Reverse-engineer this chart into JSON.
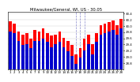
{
  "title": "Milwaukee/General, WI, US - 30.05",
  "highs": [
    30.15,
    30.08,
    29.82,
    29.72,
    29.78,
    29.58,
    29.88,
    29.82,
    29.92,
    29.78,
    29.68,
    29.72,
    29.82,
    29.62,
    29.52,
    29.38,
    29.08,
    29.28,
    29.58,
    29.72,
    29.42,
    29.78,
    30.02,
    30.08,
    30.12,
    30.18,
    30.02,
    30.22
  ],
  "lows": [
    29.82,
    29.78,
    29.52,
    29.38,
    29.42,
    29.28,
    29.52,
    29.52,
    29.58,
    29.48,
    29.32,
    29.42,
    29.48,
    29.32,
    29.18,
    29.02,
    28.78,
    28.98,
    29.22,
    29.42,
    29.08,
    29.48,
    29.72,
    29.78,
    29.82,
    29.88,
    29.72,
    29.92
  ],
  "labels": [
    "1",
    "2",
    "3",
    "4",
    "5",
    "6",
    "7",
    "8",
    "9",
    "10",
    "11",
    "12",
    "13",
    "14",
    "15",
    "16",
    "17",
    "18",
    "19",
    "20",
    "21",
    "22",
    "23",
    "24",
    "25",
    "26",
    "27",
    "28"
  ],
  "high_color": "#ff0000",
  "low_color": "#0000cc",
  "bg_color": "#ffffff",
  "grid_color": "#cccccc",
  "ymin": 28.6,
  "ymax": 30.45,
  "yticks": [
    28.8,
    29.0,
    29.2,
    29.4,
    29.6,
    29.8,
    30.0,
    30.2,
    30.4
  ],
  "dashed_lines": [
    16,
    17,
    18
  ],
  "title_fontsize": 3.8,
  "tick_fontsize": 2.8,
  "bar_width": 0.7
}
